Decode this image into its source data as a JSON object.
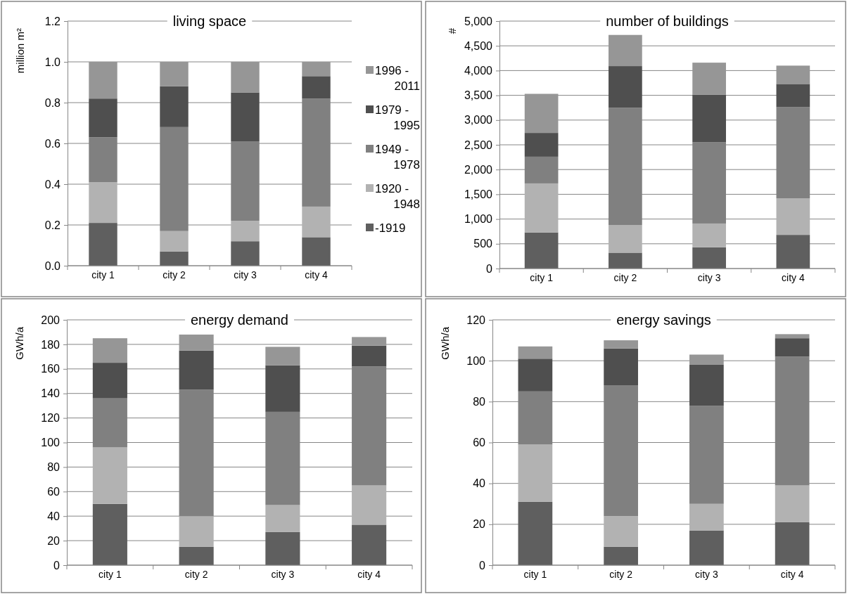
{
  "chart_data": [
    {
      "type": "bar",
      "stacked": true,
      "title": "living space",
      "ylabel": "million m²",
      "categories": [
        "city 1",
        "city 2",
        "city 3",
        "city 4"
      ],
      "ylim": [
        0,
        1.2
      ],
      "yticks": [
        {
          "value": 0,
          "label": "0.0"
        },
        {
          "value": 0.2,
          "label": "0.2"
        },
        {
          "value": 0.4,
          "label": "0.4"
        },
        {
          "value": 0.6,
          "label": "0.6"
        },
        {
          "value": 0.8,
          "label": "0.8"
        },
        {
          "value": 1,
          "label": "1.0"
        },
        {
          "value": 1.2,
          "label": "1.2"
        }
      ],
      "grid": "y",
      "legend": "right",
      "series": [
        {
          "name": "-1919",
          "color": "#5f5f5f",
          "values": [
            0.21,
            0.07,
            0.12,
            0.14
          ]
        },
        {
          "name": "1920 - 1948",
          "color": "#b2b2b2",
          "values": [
            0.2,
            0.1,
            0.1,
            0.15
          ]
        },
        {
          "name": "1949 - 1978",
          "color": "#808080",
          "values": [
            0.22,
            0.51,
            0.39,
            0.53
          ]
        },
        {
          "name": "1979 - 1995",
          "color": "#4f4f4f",
          "values": [
            0.19,
            0.2,
            0.24,
            0.11
          ]
        },
        {
          "name": "1996 - 2011",
          "color": "#969696",
          "values": [
            0.18,
            0.12,
            0.15,
            0.07
          ]
        }
      ]
    },
    {
      "type": "bar",
      "stacked": true,
      "title": "number of buildings",
      "ylabel": "#",
      "categories": [
        "city 1",
        "city 2",
        "city 3",
        "city 4"
      ],
      "ylim": [
        0,
        5000
      ],
      "yticks": [
        0,
        {
          "value": 500,
          "label": "500"
        },
        {
          "value": 1000,
          "label": "1,000"
        },
        {
          "value": 1500,
          "label": "1,500"
        },
        {
          "value": 2000,
          "label": "2,000"
        },
        {
          "value": 2500,
          "label": "2,500"
        },
        {
          "value": 3000,
          "label": "3,000"
        },
        {
          "value": 3500,
          "label": "3,500"
        },
        {
          "value": 4000,
          "label": "4,000"
        },
        {
          "value": 4500,
          "label": "4,500"
        },
        {
          "value": 5000,
          "label": "5,000"
        }
      ],
      "grid": "y",
      "series": [
        {
          "color": "#5f5f5f",
          "values": [
            730,
            320,
            430,
            680
          ]
        },
        {
          "color": "#b2b2b2",
          "values": [
            990,
            560,
            480,
            740
          ]
        },
        {
          "color": "#808080",
          "values": [
            540,
            2370,
            1640,
            1840
          ]
        },
        {
          "color": "#4f4f4f",
          "values": [
            480,
            840,
            960,
            470
          ]
        },
        {
          "color": "#969696",
          "values": [
            790,
            630,
            650,
            370
          ]
        }
      ]
    },
    {
      "type": "bar",
      "stacked": true,
      "title": "energy demand",
      "ylabel": "GWh/a",
      "categories": [
        "city 1",
        "city 2",
        "city 3",
        "city 4"
      ],
      "ylim": [
        0,
        200
      ],
      "yticks": [
        0,
        20,
        40,
        60,
        80,
        100,
        120,
        140,
        160,
        180,
        200
      ],
      "grid": "y",
      "series": [
        {
          "color": "#5f5f5f",
          "values": [
            50,
            15,
            27,
            33
          ]
        },
        {
          "color": "#b2b2b2",
          "values": [
            46,
            25,
            22,
            32
          ]
        },
        {
          "color": "#808080",
          "values": [
            40,
            103,
            76,
            97
          ]
        },
        {
          "color": "#4f4f4f",
          "values": [
            29,
            32,
            38,
            17
          ]
        },
        {
          "color": "#969696",
          "values": [
            20,
            13,
            15,
            7
          ]
        }
      ]
    },
    {
      "type": "bar",
      "stacked": true,
      "title": "energy savings",
      "ylabel": "GWh/a",
      "categories": [
        "city 1",
        "city 2",
        "city 3",
        "city 4"
      ],
      "ylim": [
        0,
        120
      ],
      "yticks": [
        0,
        20,
        40,
        60,
        80,
        100,
        120
      ],
      "grid": "y",
      "series": [
        {
          "color": "#5f5f5f",
          "values": [
            31,
            9,
            17,
            21
          ]
        },
        {
          "color": "#b2b2b2",
          "values": [
            28,
            15,
            13,
            18
          ]
        },
        {
          "color": "#808080",
          "values": [
            26,
            64,
            48,
            63
          ]
        },
        {
          "color": "#4f4f4f",
          "values": [
            16,
            18,
            20,
            9
          ]
        },
        {
          "color": "#969696",
          "values": [
            6,
            4,
            5,
            2
          ]
        }
      ]
    }
  ]
}
